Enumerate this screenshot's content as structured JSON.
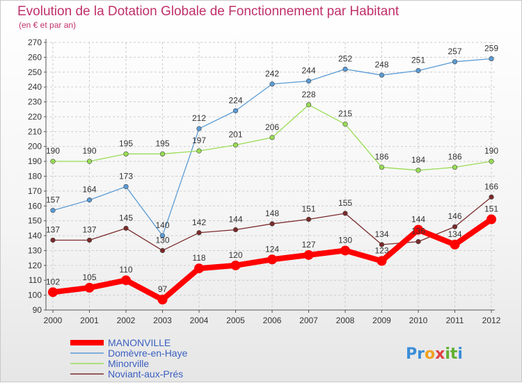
{
  "chart_data": {
    "type": "line",
    "title": "Evolution de la Dotation Globale de Fonctionnement par Habitant",
    "subtitle": "(en € et par an)",
    "xlabel": "",
    "ylabel": "",
    "x": [
      "2000",
      "2001",
      "2002",
      "2003",
      "2004",
      "2005",
      "2006",
      "2007",
      "2008",
      "2009",
      "2010",
      "2011",
      "2012"
    ],
    "ylim": [
      90,
      270
    ],
    "yticks": [
      90,
      100,
      110,
      120,
      130,
      140,
      150,
      160,
      170,
      180,
      190,
      200,
      210,
      220,
      230,
      240,
      250,
      260,
      270
    ],
    "grid": true,
    "legend_position": "bottom-left",
    "series": [
      {
        "name": "MANONVILLE",
        "color": "#ff0000",
        "values": [
          102,
          105,
          110,
          97,
          118,
          120,
          124,
          127,
          130,
          123,
          144,
          134,
          151
        ]
      },
      {
        "name": "Domèvre-en-Haye",
        "color": "#5b9bd5",
        "values": [
          157,
          164,
          173,
          140,
          212,
          224,
          242,
          244,
          252,
          248,
          251,
          257,
          259
        ]
      },
      {
        "name": "Minorville",
        "color": "#99dd55",
        "values": [
          190,
          190,
          195,
          195,
          197,
          201,
          206,
          228,
          215,
          186,
          184,
          186,
          190
        ]
      },
      {
        "name": "Noviant-aux-Prés",
        "color": "#7a2a2a",
        "values": [
          137,
          137,
          145,
          130,
          142,
          144,
          148,
          151,
          155,
          134,
          136,
          146,
          166
        ]
      }
    ]
  },
  "logo": {
    "letters": [
      {
        "ch": "P",
        "color": "#3b8ed8"
      },
      {
        "ch": "r",
        "color": "#3b8ed8"
      },
      {
        "ch": "o",
        "color": "#f0a020"
      },
      {
        "ch": "x",
        "color": "#e04040"
      },
      {
        "ch": "i",
        "color": "#60b030"
      },
      {
        "ch": "t",
        "color": "#60b030"
      },
      {
        "ch": "i",
        "color": "#3b8ed8"
      }
    ]
  }
}
